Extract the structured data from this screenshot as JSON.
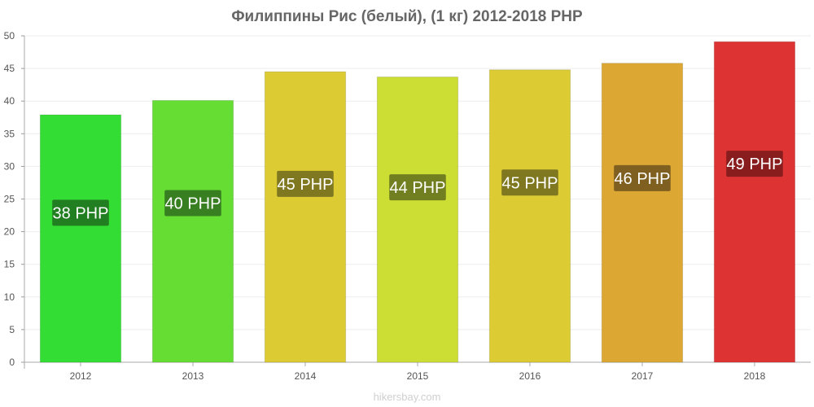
{
  "chart_data": {
    "type": "bar",
    "title": "Филиппины Рис (белый), (1 кг) 2012-2018 PHP",
    "xlabel": "",
    "ylabel": "",
    "ylim": [
      0,
      50
    ],
    "yticks": [
      "0",
      "5",
      "10",
      "15",
      "20",
      "25",
      "30",
      "35",
      "40",
      "45",
      "50"
    ],
    "grid": true,
    "categories": [
      "2012",
      "2013",
      "2014",
      "2015",
      "2016",
      "2017",
      "2018"
    ],
    "values": [
      37.9,
      40.1,
      44.5,
      43.7,
      44.8,
      45.8,
      49.1
    ],
    "labels": [
      "38 PHP",
      "40 PHP",
      "45 PHP",
      "44 PHP",
      "45 PHP",
      "46 PHP",
      "49 PHP"
    ],
    "colors": [
      "#33dd33",
      "#66dd33",
      "#dccb33",
      "#ccdd33",
      "#dccb33",
      "#dca833",
      "#dd3333"
    ],
    "label_bg": [
      "#1e6e1e",
      "#2f6e1e",
      "#6e6a1e",
      "#606e1e",
      "#6e6a1e",
      "#6e531e",
      "#7a1a1a"
    ]
  },
  "footer": {
    "watermark": "hikersbay.com"
  }
}
